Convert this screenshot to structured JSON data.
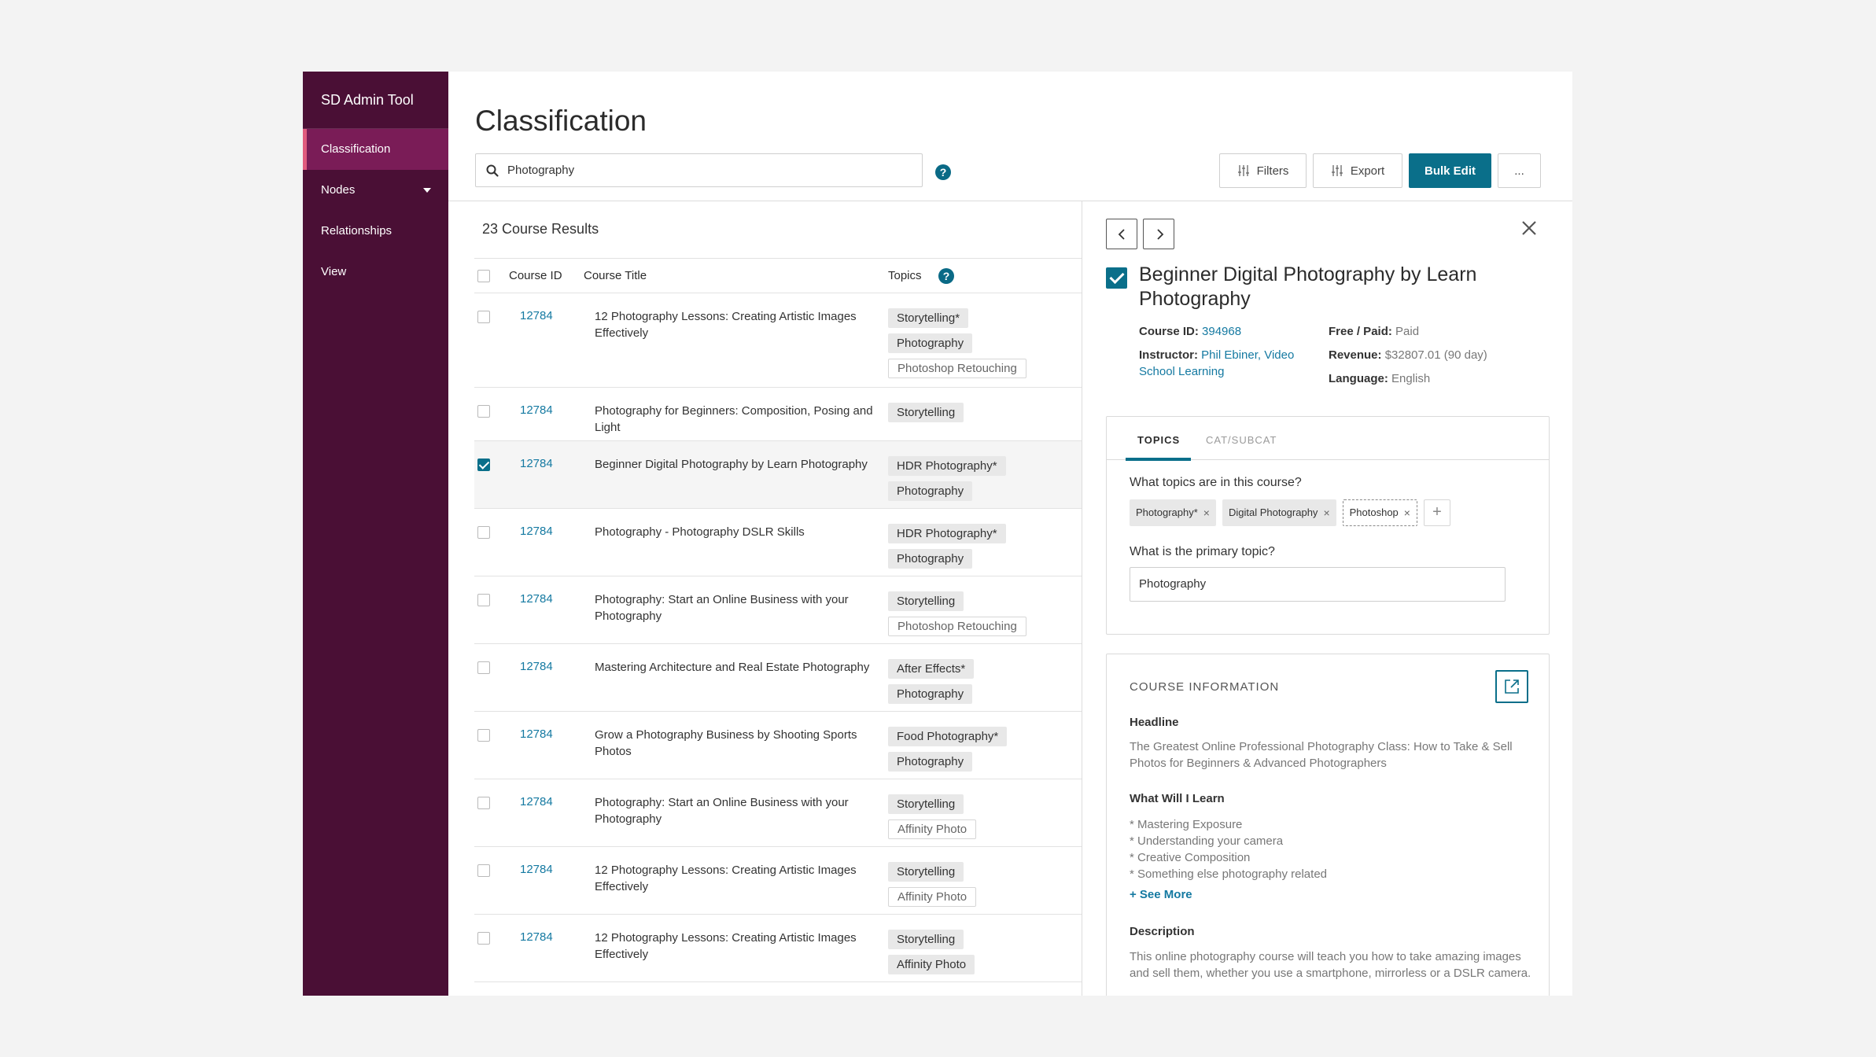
{
  "app": {
    "brand": "SD Admin Tool"
  },
  "sidebar": {
    "items": [
      {
        "label": "Classification"
      },
      {
        "label": "Nodes"
      },
      {
        "label": "Relationships"
      },
      {
        "label": "View"
      }
    ]
  },
  "header": {
    "title": "Classification",
    "search_value": "Photography",
    "help_label": "?",
    "buttons": {
      "filters": "Filters",
      "export": "Export",
      "bulk_edit": "Bulk Edit",
      "more": "..."
    }
  },
  "results": {
    "count_label": "23 Course Results",
    "columns": {
      "id": "Course ID",
      "title": "Course Title",
      "topics": "Topics"
    },
    "rows": [
      {
        "id": "12784",
        "title": "12 Photography Lessons: Creating Artistic Images Effectively",
        "checked": false,
        "topics": [
          {
            "label": "Storytelling*",
            "style": "filled"
          },
          {
            "label": "Photography",
            "style": "filled"
          },
          {
            "label": "Photoshop Retouching",
            "style": "outline"
          }
        ]
      },
      {
        "id": "12784",
        "title": "Photography for Beginners: Composition, Posing and Light",
        "checked": false,
        "topics": [
          {
            "label": "Storytelling",
            "style": "filled"
          }
        ]
      },
      {
        "id": "12784",
        "title": "Beginner Digital Photography by Learn Photography",
        "checked": true,
        "topics": [
          {
            "label": "HDR Photography*",
            "style": "filled"
          },
          {
            "label": "Photography",
            "style": "filled"
          }
        ]
      },
      {
        "id": "12784",
        "title": "Photography - Photography DSLR Skills",
        "checked": false,
        "topics": [
          {
            "label": "HDR Photography*",
            "style": "filled"
          },
          {
            "label": "Photography",
            "style": "filled"
          }
        ]
      },
      {
        "id": "12784",
        "title": "Photography: Start an Online Business with your Photography",
        "checked": false,
        "topics": [
          {
            "label": "Storytelling",
            "style": "filled"
          },
          {
            "label": "Photoshop Retouching",
            "style": "outline"
          }
        ]
      },
      {
        "id": "12784",
        "title": "Mastering Architecture and Real Estate Photography",
        "checked": false,
        "topics": [
          {
            "label": "After Effects*",
            "style": "filled"
          },
          {
            "label": "Photography",
            "style": "filled"
          }
        ]
      },
      {
        "id": "12784",
        "title": "Grow a Photography Business by Shooting Sports Photos",
        "checked": false,
        "topics": [
          {
            "label": "Food Photography*",
            "style": "filled"
          },
          {
            "label": "Photography",
            "style": "filled"
          }
        ]
      },
      {
        "id": "12784",
        "title": "Photography: Start an Online Business with your Photography",
        "checked": false,
        "topics": [
          {
            "label": "Storytelling",
            "style": "filled"
          },
          {
            "label": "Affinity Photo",
            "style": "outline"
          }
        ]
      },
      {
        "id": "12784",
        "title": "12 Photography Lessons: Creating Artistic Images Effectively",
        "checked": false,
        "topics": [
          {
            "label": "Storytelling",
            "style": "filled"
          },
          {
            "label": "Affinity Photo",
            "style": "outline"
          }
        ]
      },
      {
        "id": "12784",
        "title": "12 Photography Lessons: Creating Artistic Images Effectively",
        "checked": false,
        "topics": [
          {
            "label": "Storytelling",
            "style": "filled"
          },
          {
            "label": "Affinity Photo",
            "style": "filled"
          }
        ]
      }
    ]
  },
  "detail": {
    "title": "Beginner Digital Photography by Learn Photography",
    "course_id_label": "Course ID:",
    "course_id": "394968",
    "instructor_label": "Instructor:",
    "instructor": "Phil Ebiner, Video School Learning",
    "free_paid_label": "Free / Paid:",
    "free_paid": "Paid",
    "revenue_label": "Revenue:",
    "revenue": "$32807.01 (90 day)",
    "language_label": "Language:",
    "language": "English",
    "tabs": {
      "topics": "TOPICS",
      "catsubcat": "CAT/SUBCAT"
    },
    "topics_question": "What topics are in this course?",
    "topic_chips": [
      "Photography*",
      "Digital Photography",
      "Photoshop"
    ],
    "add_label": "+",
    "primary_question": "What is the primary topic?",
    "primary_value": "Photography",
    "info": {
      "title": "COURSE INFORMATION",
      "headline_label": "Headline",
      "headline": "The Greatest Online Professional Photography Class: How to Take & Sell Photos for Beginners & Advanced Photographers",
      "learn_label": "What Will I Learn",
      "learn_items": [
        "* Mastering Exposure",
        "* Understanding your camera",
        "* Creative Composition",
        "* Something else photography related"
      ],
      "see_more": "+ See More",
      "description_label": "Description",
      "description": "This online photography course will teach you how to take amazing images and sell them, whether you use a smartphone, mirrorless or a DSLR camera."
    }
  },
  "colors": {
    "sidebar": "#4a0f35",
    "sidebar_active": "#7a1c57",
    "accent": "#0a6f8a",
    "link": "#1479a1"
  }
}
